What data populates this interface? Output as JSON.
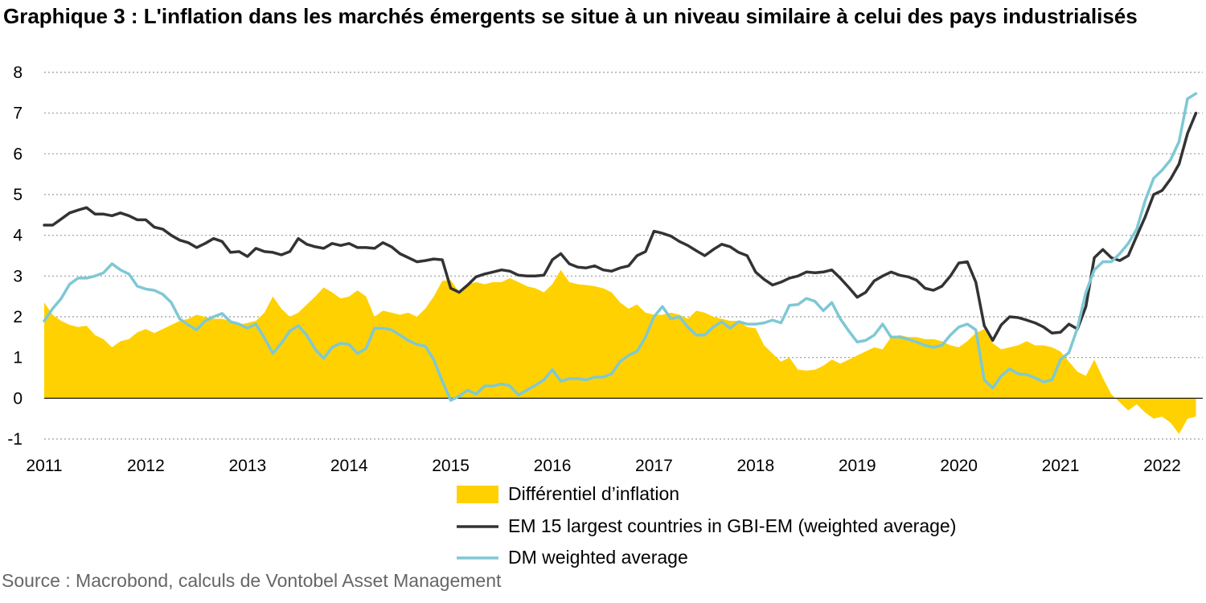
{
  "chart_data": {
    "type": "line",
    "title": "Graphique 3 : L'inflation dans les marchés émergents se situe à un niveau similaire à celui des pays industrialisés",
    "xlabel": "",
    "ylabel": "",
    "ylim": [
      -1,
      8
    ],
    "xlim": [
      2011,
      2022.4
    ],
    "y_ticks": [
      "-1",
      "0",
      "1",
      "2",
      "3",
      "4",
      "5",
      "6",
      "7",
      "8"
    ],
    "x_ticks": [
      "2011",
      "2012",
      "2013",
      "2014",
      "2015",
      "2016",
      "2017",
      "2018",
      "2019",
      "2020",
      "2021",
      "2022"
    ],
    "grid": "horizontal dotted",
    "legend_position": "bottom",
    "x": [
      2011.0,
      2011.083,
      2011.167,
      2011.25,
      2011.333,
      2011.417,
      2011.5,
      2011.583,
      2011.667,
      2011.75,
      2011.833,
      2011.917,
      2012.0,
      2012.083,
      2012.167,
      2012.25,
      2012.333,
      2012.417,
      2012.5,
      2012.583,
      2012.667,
      2012.75,
      2012.833,
      2012.917,
      2013.0,
      2013.083,
      2013.167,
      2013.25,
      2013.333,
      2013.417,
      2013.5,
      2013.583,
      2013.667,
      2013.75,
      2013.833,
      2013.917,
      2014.0,
      2014.083,
      2014.167,
      2014.25,
      2014.333,
      2014.417,
      2014.5,
      2014.583,
      2014.667,
      2014.75,
      2014.833,
      2014.917,
      2015.0,
      2015.083,
      2015.167,
      2015.25,
      2015.333,
      2015.417,
      2015.5,
      2015.583,
      2015.667,
      2015.75,
      2015.833,
      2015.917,
      2016.0,
      2016.083,
      2016.167,
      2016.25,
      2016.333,
      2016.417,
      2016.5,
      2016.583,
      2016.667,
      2016.75,
      2016.833,
      2016.917,
      2017.0,
      2017.083,
      2017.167,
      2017.25,
      2017.333,
      2017.417,
      2017.5,
      2017.583,
      2017.667,
      2017.75,
      2017.833,
      2017.917,
      2018.0,
      2018.083,
      2018.167,
      2018.25,
      2018.333,
      2018.417,
      2018.5,
      2018.583,
      2018.667,
      2018.75,
      2018.833,
      2018.917,
      2019.0,
      2019.083,
      2019.167,
      2019.25,
      2019.333,
      2019.417,
      2019.5,
      2019.583,
      2019.667,
      2019.75,
      2019.833,
      2019.917,
      2020.0,
      2020.083,
      2020.167,
      2020.25,
      2020.333,
      2020.417,
      2020.5,
      2020.583,
      2020.667,
      2020.75,
      2020.833,
      2020.917,
      2021.0,
      2021.083,
      2021.167,
      2021.25,
      2021.333,
      2021.417,
      2021.5,
      2021.583,
      2021.667,
      2021.75,
      2021.833,
      2021.917,
      2022.0,
      2022.083,
      2022.167,
      2022.25,
      2022.333
    ],
    "series": [
      {
        "name": "Différentiel d’inflation",
        "type": "area",
        "color": "#ffd100",
        "values": [
          2.35,
          2.05,
          1.9,
          1.8,
          1.75,
          1.78,
          1.55,
          1.45,
          1.25,
          1.4,
          1.45,
          1.62,
          1.7,
          1.6,
          1.7,
          1.8,
          1.9,
          1.95,
          2.05,
          2.0,
          1.95,
          1.95,
          1.9,
          1.8,
          1.85,
          1.9,
          2.1,
          2.5,
          2.2,
          2.0,
          2.1,
          2.3,
          2.5,
          2.72,
          2.6,
          2.45,
          2.5,
          2.65,
          2.5,
          2.0,
          2.15,
          2.1,
          2.05,
          2.1,
          2.0,
          2.2,
          2.5,
          2.88,
          2.9,
          2.6,
          2.8,
          2.85,
          2.8,
          2.85,
          2.85,
          2.95,
          2.85,
          2.75,
          2.7,
          2.6,
          2.8,
          3.15,
          2.85,
          2.8,
          2.78,
          2.75,
          2.7,
          2.6,
          2.35,
          2.2,
          2.3,
          2.1,
          2.05,
          2.05,
          2.1,
          2.05,
          1.95,
          2.15,
          2.1,
          2.0,
          1.95,
          1.9,
          1.9,
          1.75,
          1.72,
          1.3,
          1.1,
          0.9,
          1.0,
          0.7,
          0.68,
          0.7,
          0.8,
          0.95,
          0.85,
          0.95,
          1.05,
          1.15,
          1.25,
          1.2,
          1.5,
          1.55,
          1.5,
          1.5,
          1.45,
          1.45,
          1.4,
          1.3,
          1.25,
          1.4,
          1.6,
          1.7,
          1.35,
          1.2,
          1.25,
          1.3,
          1.4,
          1.3,
          1.3,
          1.25,
          1.15,
          0.9,
          0.65,
          0.55,
          0.95,
          0.5,
          0.1,
          -0.1,
          -0.3,
          -0.15,
          -0.35,
          -0.5,
          -0.45,
          -0.6,
          -0.88,
          -0.5,
          -0.45
        ]
      },
      {
        "name": "EM 15 largest countries in GBI-EM (weighted average)",
        "type": "line",
        "color": "#333333",
        "values": [
          4.25,
          4.25,
          4.4,
          4.55,
          4.62,
          4.68,
          4.52,
          4.52,
          4.48,
          4.55,
          4.48,
          4.38,
          4.38,
          4.2,
          4.15,
          4.0,
          3.88,
          3.82,
          3.7,
          3.8,
          3.92,
          3.85,
          3.58,
          3.6,
          3.48,
          3.68,
          3.6,
          3.58,
          3.52,
          3.6,
          3.92,
          3.78,
          3.72,
          3.68,
          3.8,
          3.75,
          3.8,
          3.7,
          3.7,
          3.68,
          3.82,
          3.72,
          3.55,
          3.45,
          3.35,
          3.38,
          3.42,
          3.4,
          2.7,
          2.6,
          2.78,
          2.98,
          3.05,
          3.1,
          3.15,
          3.12,
          3.02,
          3.0,
          3.0,
          3.02,
          3.4,
          3.55,
          3.3,
          3.22,
          3.2,
          3.25,
          3.15,
          3.12,
          3.2,
          3.25,
          3.5,
          3.6,
          4.1,
          4.05,
          3.98,
          3.85,
          3.75,
          3.62,
          3.5,
          3.65,
          3.78,
          3.72,
          3.58,
          3.5,
          3.1,
          2.92,
          2.78,
          2.85,
          2.95,
          3.0,
          3.1,
          3.08,
          3.1,
          3.15,
          2.95,
          2.72,
          2.48,
          2.6,
          2.88,
          3.0,
          3.1,
          3.02,
          2.98,
          2.9,
          2.7,
          2.65,
          2.75,
          3.0,
          3.32,
          3.35,
          2.85,
          1.78,
          1.42,
          1.8,
          2.0,
          1.98,
          1.92,
          1.85,
          1.75,
          1.6,
          1.62,
          1.82,
          1.7,
          2.25,
          3.45,
          3.65,
          3.45,
          3.38,
          3.5,
          3.98,
          4.45,
          5.0,
          5.1,
          5.38,
          5.75,
          6.5,
          7.0
        ]
      },
      {
        "name": "DM weighted average",
        "type": "line",
        "color": "#7ec8d4",
        "values": [
          1.9,
          2.2,
          2.45,
          2.8,
          2.95,
          2.95,
          3.0,
          3.08,
          3.3,
          3.15,
          3.05,
          2.75,
          2.68,
          2.65,
          2.55,
          2.35,
          1.95,
          1.8,
          1.68,
          1.9,
          2.0,
          2.08,
          1.88,
          1.82,
          1.72,
          1.82,
          1.48,
          1.1,
          1.35,
          1.65,
          1.78,
          1.55,
          1.2,
          0.98,
          1.25,
          1.35,
          1.32,
          1.1,
          1.22,
          1.72,
          1.72,
          1.68,
          1.55,
          1.42,
          1.32,
          1.28,
          0.95,
          0.42,
          -0.05,
          0.05,
          0.2,
          0.1,
          0.3,
          0.3,
          0.35,
          0.3,
          0.08,
          0.2,
          0.32,
          0.45,
          0.7,
          0.42,
          0.48,
          0.48,
          0.45,
          0.52,
          0.52,
          0.6,
          0.9,
          1.05,
          1.15,
          1.5,
          2.0,
          2.25,
          1.95,
          2.0,
          1.75,
          1.55,
          1.55,
          1.75,
          1.88,
          1.72,
          1.88,
          1.82,
          1.82,
          1.85,
          1.92,
          1.85,
          2.28,
          2.3,
          2.45,
          2.38,
          2.15,
          2.35,
          1.95,
          1.65,
          1.38,
          1.42,
          1.55,
          1.82,
          1.5,
          1.5,
          1.45,
          1.38,
          1.3,
          1.25,
          1.3,
          1.55,
          1.75,
          1.82,
          1.68,
          0.45,
          0.25,
          0.55,
          0.72,
          0.6,
          0.58,
          0.5,
          0.4,
          0.45,
          0.95,
          1.12,
          1.72,
          2.6,
          3.15,
          3.35,
          3.35,
          3.55,
          3.8,
          4.15,
          4.85,
          5.4,
          5.6,
          5.85,
          6.3,
          7.35,
          7.48
        ]
      }
    ]
  },
  "legend": {
    "items": [
      {
        "label": "Différentiel d’inflation",
        "color": "#ffd100",
        "kind": "area"
      },
      {
        "label": "EM 15 largest countries in GBI-EM (weighted average)",
        "color": "#333333",
        "kind": "line"
      },
      {
        "label": "DM weighted average",
        "color": "#7ec8d4",
        "kind": "line"
      }
    ]
  },
  "source": "Source : Macrobond, calculs de Vontobel Asset Management"
}
